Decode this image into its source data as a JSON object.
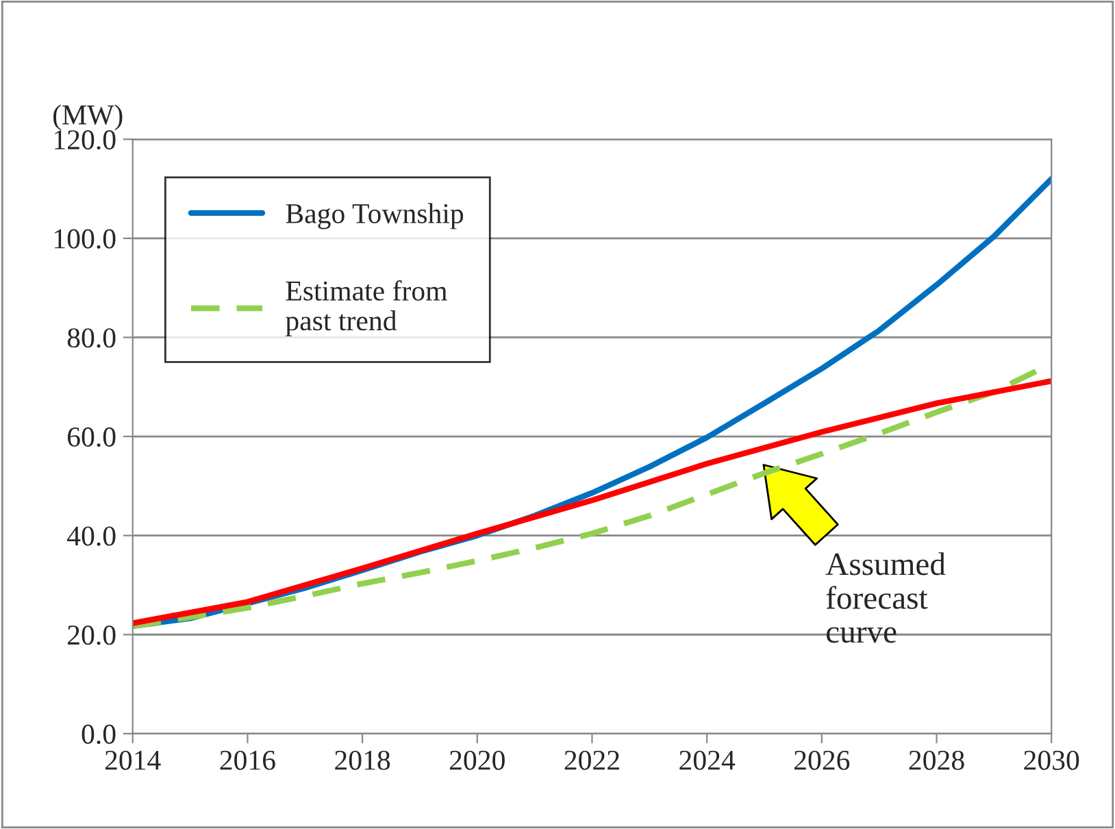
{
  "chart_data": {
    "type": "line",
    "ylabel": "(MW)",
    "x": [
      2014,
      2015,
      2016,
      2017,
      2018,
      2019,
      2020,
      2021,
      2022,
      2023,
      2024,
      2025,
      2026,
      2027,
      2028,
      2029,
      2030
    ],
    "series": [
      {
        "name": "Bago Township",
        "color": "#0070c0",
        "values": [
          21.7,
          23.3,
          26.3,
          29.4,
          33.0,
          36.7,
          40.0,
          44.0,
          48.6,
          53.9,
          59.8,
          66.7,
          73.7,
          81.4,
          90.6,
          100.4,
          112.0
        ]
      },
      {
        "name": "Estimate from\npast trend",
        "color": "#92d050",
        "line_style": "dashed",
        "values": [
          21.7,
          23.5,
          25.4,
          27.8,
          30.3,
          32.5,
          34.9,
          37.5,
          40.4,
          44.0,
          48.3,
          52.6,
          56.5,
          60.6,
          64.9,
          69.0,
          74.7
        ]
      },
      {
        "color": "#ff0000",
        "x": [
          2014,
          2016,
          2018,
          2020,
          2022,
          2024,
          2026,
          2028,
          2030
        ],
        "values": [
          22.3,
          26.6,
          33.4,
          40.4,
          47.1,
          54.5,
          60.9,
          66.7,
          71.2
        ]
      }
    ],
    "annotations": [
      "Assumed\nforecast\ncurve"
    ],
    "xlim": [
      2014,
      2030
    ],
    "xticks": [
      2014,
      2016,
      2018,
      2020,
      2022,
      2024,
      2026,
      2028,
      2030
    ],
    "ylim": [
      0,
      120
    ],
    "yticks": [
      {
        "value": 0,
        "label": "0.0"
      },
      {
        "value": 20,
        "label": "20.0"
      },
      {
        "value": 40,
        "label": "40.0"
      },
      {
        "value": 60,
        "label": "60.0"
      },
      {
        "value": 80,
        "label": "80.0"
      },
      {
        "value": 100,
        "label": "100.0"
      },
      {
        "value": 120,
        "label": "120.0"
      }
    ],
    "grid": "y",
    "legend": "top left",
    "line_style": "solid",
    "marker": "none"
  }
}
